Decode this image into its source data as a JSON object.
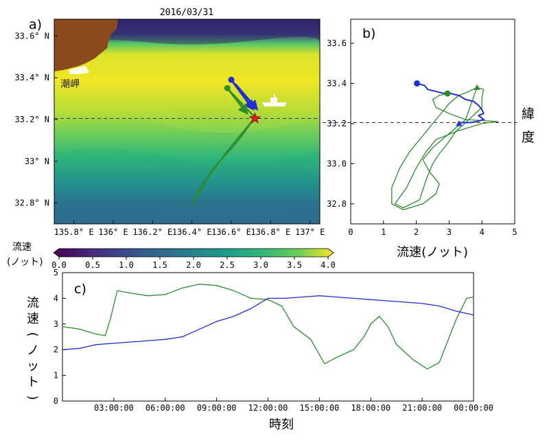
{
  "chart_data": [
    {
      "panel": "a)",
      "type": "heatmap",
      "title": "2016/03/31",
      "place_label": "潮岬",
      "xticks": [
        "135.8° E",
        "136° E",
        "136.2° E",
        "136.4° E",
        "136.6° E",
        "136.8° E",
        "137° E"
      ],
      "yticks": [
        "33.6° N",
        "33.4° N",
        "33.2° N",
        "33° N",
        "32.8° N"
      ],
      "xlim": [
        135.7,
        137.05
      ],
      "ylim": [
        32.7,
        33.68
      ],
      "reference_latitude": 33.205,
      "colorbar": {
        "label_line1": "流速",
        "label_line2": "(ノット)",
        "ticks": [
          "0.0",
          "0.5",
          "1.0",
          "1.5",
          "2.0",
          "2.5",
          "3.0",
          "3.5",
          "4.0"
        ],
        "range": [
          0,
          4
        ]
      },
      "track": [
        [
          136.4,
          32.79
        ],
        [
          136.48,
          32.92
        ],
        [
          136.58,
          33.05
        ],
        [
          136.66,
          33.14
        ],
        [
          136.72,
          33.21
        ],
        [
          136.65,
          33.28
        ],
        [
          136.58,
          33.35
        ]
      ],
      "track_return": [
        [
          136.72,
          33.21
        ],
        [
          136.66,
          33.13
        ],
        [
          136.6,
          33.06
        ],
        [
          136.52,
          32.98
        ],
        [
          136.44,
          32.87
        ],
        [
          136.4,
          32.79
        ]
      ],
      "vectors": [
        {
          "start": [
            136.6,
            33.39
          ],
          "end": [
            136.71,
            33.25
          ],
          "color": "#1f2fd0"
        },
        {
          "start": [
            136.62,
            33.37
          ],
          "end": [
            136.73,
            33.25
          ],
          "color": "#1f2fd0"
        },
        {
          "start": [
            136.58,
            33.35
          ],
          "end": [
            136.68,
            33.23
          ],
          "color": "#2e8b2e"
        }
      ],
      "points": [
        {
          "name": "start-blue",
          "lon": 136.6,
          "lat": 33.39,
          "color": "#1f2fd0"
        },
        {
          "name": "start-green",
          "lon": 136.58,
          "lat": 33.35,
          "color": "#2e8b2e"
        },
        {
          "name": "current-position",
          "lon": 136.72,
          "lat": 33.205,
          "color": "#d62020"
        }
      ],
      "ship_position": [
        136.8,
        33.25
      ]
    },
    {
      "panel": "b)",
      "type": "line",
      "xlabel": "流速(ノット)",
      "ylabel_right": "緯度",
      "xlim": [
        0,
        5
      ],
      "ylim": [
        32.7,
        33.72
      ],
      "xticks": [
        "0",
        "1",
        "2",
        "3",
        "4",
        "5"
      ],
      "yticks": [
        "33.6",
        "33.4",
        "33.2",
        "33.0",
        "32.8"
      ],
      "reference_latitude": 33.205,
      "series": [
        {
          "color": "#1f2fd0",
          "marker_start": "circle",
          "marker_end": "triangle",
          "points": [
            [
              2.02,
              33.4
            ],
            [
              2.25,
              33.39
            ],
            [
              2.35,
              33.37
            ],
            [
              2.6,
              33.36
            ],
            [
              2.85,
              33.35
            ],
            [
              3.05,
              33.35
            ],
            [
              3.3,
              33.34
            ],
            [
              3.5,
              33.32
            ],
            [
              3.75,
              33.31
            ],
            [
              3.9,
              33.29
            ],
            [
              4.0,
              33.27
            ],
            [
              4.05,
              33.25
            ],
            [
              3.9,
              33.24
            ],
            [
              4.05,
              33.22
            ],
            [
              3.85,
              33.21
            ],
            [
              3.65,
              33.205
            ],
            [
              3.35,
              33.205
            ],
            [
              3.3,
              33.2
            ]
          ]
        },
        {
          "color": "#2e8b2e",
          "marker_start": "circle",
          "marker_end": "triangle",
          "points": [
            [
              2.95,
              33.35
            ],
            [
              2.7,
              33.34
            ],
            [
              2.5,
              33.32
            ],
            [
              2.6,
              33.28
            ],
            [
              3.0,
              33.25
            ],
            [
              3.5,
              33.22
            ],
            [
              4.0,
              33.215
            ],
            [
              4.5,
              33.21
            ],
            [
              4.0,
              33.2
            ],
            [
              3.2,
              33.16
            ],
            [
              2.6,
              33.12
            ],
            [
              2.3,
              33.06
            ],
            [
              2.0,
              32.98
            ],
            [
              1.7,
              32.88
            ],
            [
              1.35,
              32.8
            ],
            [
              1.6,
              32.78
            ],
            [
              2.1,
              32.82
            ],
            [
              2.3,
              32.92
            ],
            [
              2.5,
              33.0
            ],
            [
              2.7,
              33.05
            ],
            [
              2.95,
              33.1
            ],
            [
              3.2,
              33.16
            ],
            [
              3.6,
              33.22
            ],
            [
              4.0,
              33.28
            ],
            [
              4.0,
              33.33
            ],
            [
              4.05,
              33.37
            ],
            [
              3.85,
              33.38
            ],
            [
              3.6,
              33.36
            ],
            [
              3.3,
              33.34
            ],
            [
              3.0,
              33.3
            ],
            [
              2.6,
              33.22
            ],
            [
              2.2,
              33.14
            ],
            [
              1.8,
              33.06
            ],
            [
              1.5,
              32.98
            ],
            [
              1.25,
              32.88
            ],
            [
              1.25,
              32.8
            ],
            [
              1.6,
              32.77
            ],
            [
              2.2,
              32.8
            ],
            [
              2.6,
              32.85
            ],
            [
              2.7,
              32.9
            ],
            [
              2.4,
              32.96
            ],
            [
              2.2,
              33.02
            ],
            [
              2.5,
              33.08
            ],
            [
              3.0,
              33.15
            ],
            [
              3.5,
              33.22
            ],
            [
              3.85,
              33.38
            ]
          ]
        }
      ]
    },
    {
      "panel": "c)",
      "type": "line",
      "xlabel": "時刻",
      "ylabel": "流速(ノット)",
      "xlim": [
        0,
        24
      ],
      "ylim": [
        0,
        5
      ],
      "xticks": [
        "03:00:00",
        "06:00:00",
        "09:00:00",
        "12:00:00",
        "15:00:00",
        "18:00:00",
        "21:00:00",
        "00:00:00"
      ],
      "yticks": [
        "0",
        "1",
        "2",
        "3",
        "4",
        "5"
      ],
      "series": [
        {
          "color": "#2e8b2e",
          "points": [
            [
              0,
              2.9
            ],
            [
              1,
              2.8
            ],
            [
              2,
              2.6
            ],
            [
              2.5,
              2.55
            ],
            [
              2.8,
              3.2
            ],
            [
              3.2,
              4.3
            ],
            [
              4,
              4.2
            ],
            [
              5,
              4.1
            ],
            [
              6,
              4.15
            ],
            [
              7,
              4.4
            ],
            [
              8,
              4.55
            ],
            [
              9,
              4.5
            ],
            [
              10,
              4.3
            ],
            [
              11,
              4.0
            ],
            [
              12,
              3.95
            ],
            [
              12.8,
              3.7
            ],
            [
              13.5,
              2.9
            ],
            [
              14.5,
              2.4
            ],
            [
              15.3,
              1.45
            ],
            [
              16,
              1.7
            ],
            [
              17,
              2.0
            ],
            [
              17.6,
              2.5
            ],
            [
              18,
              3.0
            ],
            [
              18.5,
              3.3
            ],
            [
              19,
              2.9
            ],
            [
              19.5,
              2.2
            ],
            [
              20.5,
              1.6
            ],
            [
              21.3,
              1.25
            ],
            [
              22,
              1.5
            ],
            [
              23,
              3.2
            ],
            [
              23.6,
              4.0
            ],
            [
              24,
              4.05
            ]
          ]
        },
        {
          "color": "#1f2fd0",
          "points": [
            [
              0,
              2.0
            ],
            [
              1,
              2.05
            ],
            [
              2,
              2.2
            ],
            [
              3,
              2.25
            ],
            [
              4,
              2.3
            ],
            [
              5,
              2.35
            ],
            [
              6,
              2.4
            ],
            [
              7,
              2.5
            ],
            [
              8,
              2.8
            ],
            [
              9,
              3.1
            ],
            [
              10,
              3.3
            ],
            [
              11,
              3.6
            ],
            [
              12,
              4.0
            ],
            [
              13,
              4.0
            ],
            [
              14,
              4.05
            ],
            [
              15,
              4.1
            ],
            [
              16,
              4.05
            ],
            [
              17,
              4.0
            ],
            [
              18,
              3.95
            ],
            [
              19,
              3.9
            ],
            [
              20,
              3.85
            ],
            [
              21,
              3.8
            ],
            [
              22,
              3.7
            ],
            [
              23,
              3.5
            ],
            [
              24,
              3.35
            ]
          ]
        }
      ]
    }
  ]
}
